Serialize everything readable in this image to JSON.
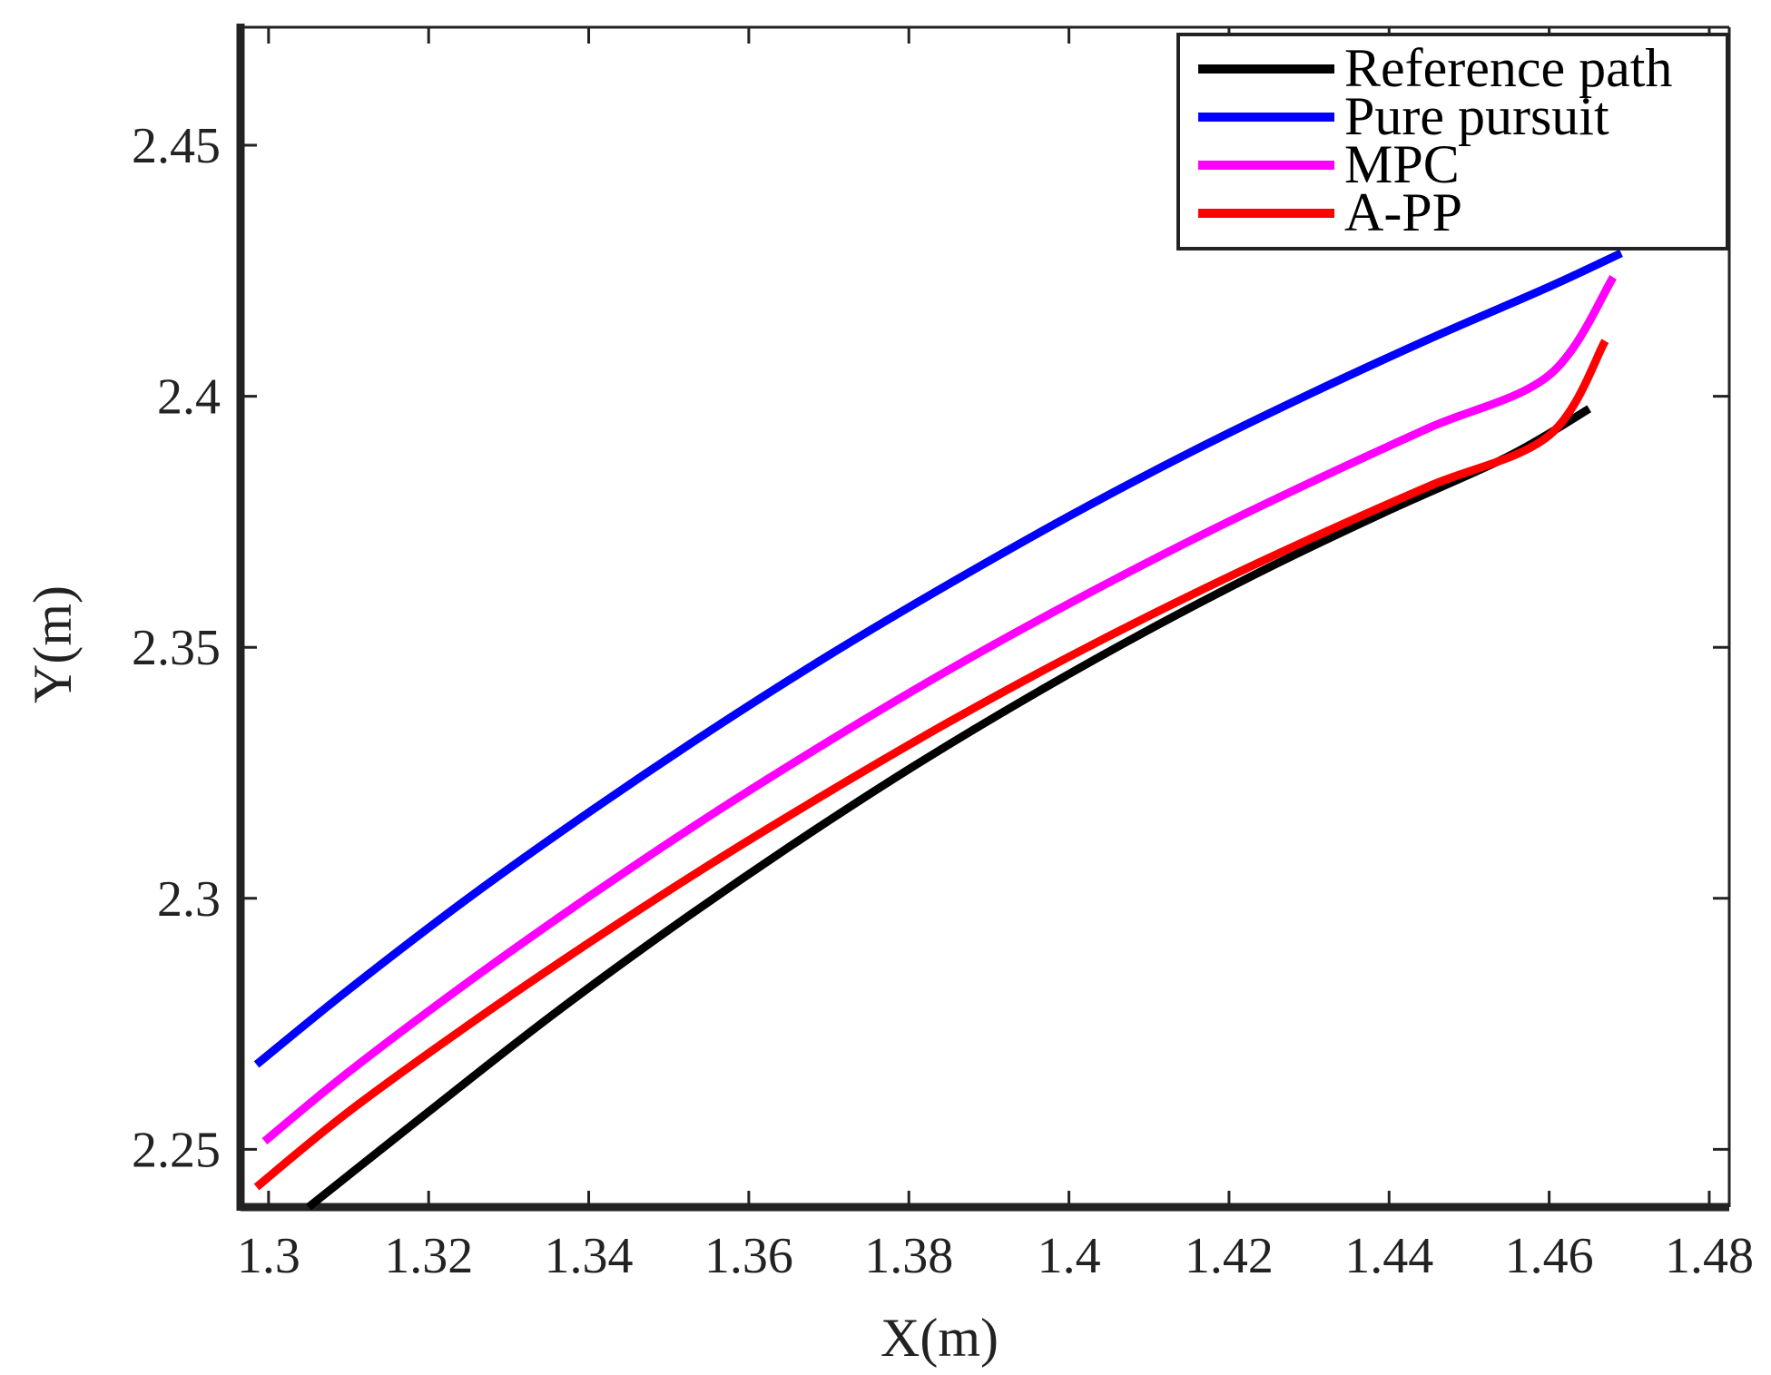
{
  "chart_data": {
    "type": "line",
    "title": "",
    "xlabel": "X(m)",
    "ylabel": "Y(m)",
    "xlim": [
      1.2965,
      1.4825
    ],
    "ylim": [
      2.2385,
      2.4735
    ],
    "xticks": [
      1.3,
      1.32,
      1.34,
      1.36,
      1.38,
      1.4,
      1.42,
      1.44,
      1.46,
      1.48
    ],
    "xtick_labels": [
      "1.3",
      "1.32",
      "1.34",
      "1.36",
      "1.38",
      "1.4",
      "1.42",
      "1.44",
      "1.46",
      "1.48"
    ],
    "yticks": [
      2.25,
      2.3,
      2.35,
      2.4,
      2.45
    ],
    "ytick_labels": [
      "2.25",
      "2.3",
      "2.35",
      "2.4",
      "2.45"
    ],
    "grid": false,
    "legend_position": "top-right",
    "series": [
      {
        "name": "Reference path",
        "color": "#000000",
        "x": [
          1.305,
          1.32,
          1.335,
          1.35,
          1.365,
          1.38,
          1.395,
          1.41,
          1.425,
          1.44,
          1.455,
          1.465
        ],
        "y": [
          2.2385,
          2.2575,
          2.2762,
          2.2937,
          2.3102,
          2.3257,
          2.3401,
          2.3535,
          2.3659,
          2.3773,
          2.3881,
          2.3975
        ]
      },
      {
        "name": "Pure pursuit",
        "color": "#0000ff",
        "x": [
          1.2985,
          1.31,
          1.325,
          1.34,
          1.355,
          1.37,
          1.385,
          1.4,
          1.415,
          1.43,
          1.445,
          1.46,
          1.469
        ],
        "y": [
          2.2669,
          2.2818,
          2.3001,
          2.3171,
          2.3332,
          2.3484,
          2.3626,
          2.3761,
          2.3887,
          2.4004,
          2.4114,
          2.4218,
          2.4285
        ]
      },
      {
        "name": "MPC",
        "color": "#ff00ff",
        "x": [
          1.2995,
          1.31,
          1.325,
          1.34,
          1.355,
          1.37,
          1.385,
          1.4,
          1.415,
          1.43,
          1.445,
          1.46,
          1.468
        ],
        "y": [
          2.2516,
          2.2654,
          2.2834,
          2.3003,
          2.3163,
          2.3313,
          2.3455,
          2.3587,
          2.3711,
          2.3827,
          2.3937,
          2.4042,
          2.4237
        ]
      },
      {
        "name": "A-PP",
        "color": "#ff0000",
        "x": [
          1.2985,
          1.31,
          1.325,
          1.34,
          1.355,
          1.37,
          1.385,
          1.4,
          1.415,
          1.43,
          1.445,
          1.46,
          1.467
        ],
        "y": [
          2.2425,
          2.2575,
          2.2748,
          2.2911,
          2.3066,
          2.3212,
          2.3351,
          2.3481,
          2.3602,
          2.3715,
          2.3821,
          2.3922,
          2.411
        ]
      }
    ]
  }
}
